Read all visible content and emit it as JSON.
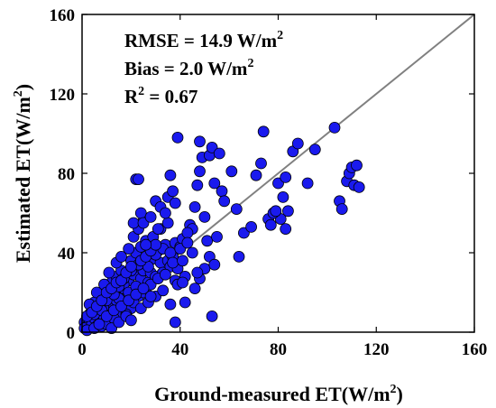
{
  "chart_data": {
    "type": "scatter",
    "xlabel": "Ground-measured ET(W/m",
    "xlabel_sup": "2",
    "xlabel_close": ")",
    "ylabel": "Estimated ET(W/m",
    "ylabel_sup": "2",
    "ylabel_close": ")",
    "xlim": [
      0,
      160
    ],
    "ylim": [
      0,
      160
    ],
    "xticks": [
      "0",
      "40",
      "80",
      "120",
      "160"
    ],
    "yticks": [
      "0",
      "40",
      "80",
      "120",
      "160"
    ],
    "annotations": {
      "rmse": "RMSE = 14.9 W/m",
      "rmse_sup": "2",
      "bias": "Bias = 2.0 W/m",
      "bias_sup": "2",
      "r2_prefix": "R",
      "r2_sup": "2",
      "r2_rest": " = 0.67"
    },
    "reference_line": {
      "from": [
        0,
        0
      ],
      "to": [
        160,
        160
      ],
      "color": "#808080"
    },
    "marker": {
      "fill": "#1a1aee",
      "stroke": "#000000"
    },
    "grid": false,
    "points": [
      [
        1,
        5
      ],
      [
        2,
        3
      ],
      [
        3,
        6
      ],
      [
        1,
        2
      ],
      [
        4,
        4
      ],
      [
        5,
        7
      ],
      [
        2,
        1
      ],
      [
        6,
        3
      ],
      [
        3,
        9
      ],
      [
        5,
        2
      ],
      [
        7,
        8
      ],
      [
        4,
        12
      ],
      [
        8,
        5
      ],
      [
        6,
        10
      ],
      [
        9,
        7
      ],
      [
        7,
        14
      ],
      [
        10,
        11
      ],
      [
        8,
        3
      ],
      [
        11,
        6
      ],
      [
        5,
        15
      ],
      [
        12,
        9
      ],
      [
        9,
        18
      ],
      [
        13,
        13
      ],
      [
        10,
        4
      ],
      [
        14,
        16
      ],
      [
        11,
        21
      ],
      [
        15,
        10
      ],
      [
        12,
        25
      ],
      [
        16,
        19
      ],
      [
        13,
        7
      ],
      [
        17,
        22
      ],
      [
        14,
        28
      ],
      [
        18,
        14
      ],
      [
        15,
        17
      ],
      [
        19,
        26
      ],
      [
        16,
        31
      ],
      [
        20,
        12
      ],
      [
        17,
        24
      ],
      [
        21,
        29
      ],
      [
        18,
        9
      ],
      [
        22,
        33
      ],
      [
        19,
        20
      ],
      [
        23,
        18
      ],
      [
        20,
        36
      ],
      [
        24,
        27
      ],
      [
        21,
        15
      ],
      [
        25,
        31
      ],
      [
        22,
        40
      ],
      [
        26,
        22
      ],
      [
        23,
        34
      ],
      [
        27,
        25
      ],
      [
        24,
        43
      ],
      [
        28,
        30
      ],
      [
        25,
        20
      ],
      [
        29,
        37
      ],
      [
        26,
        46
      ],
      [
        30,
        28
      ],
      [
        27,
        33
      ],
      [
        31,
        41
      ],
      [
        28,
        24
      ],
      [
        32,
        35
      ],
      [
        29,
        48
      ],
      [
        33,
        30
      ],
      [
        30,
        39
      ],
      [
        34,
        44
      ],
      [
        31,
        27
      ],
      [
        35,
        36
      ],
      [
        32,
        52
      ],
      [
        36,
        33
      ],
      [
        33,
        42
      ],
      [
        37,
        38
      ],
      [
        34,
        29
      ],
      [
        38,
        45
      ],
      [
        35,
        55
      ],
      [
        39,
        32
      ],
      [
        36,
        40
      ],
      [
        40,
        43
      ],
      [
        37,
        35
      ],
      [
        41,
        47
      ],
      [
        38,
        26
      ],
      [
        3,
        14
      ],
      [
        6,
        20
      ],
      [
        9,
        24
      ],
      [
        11,
        30
      ],
      [
        14,
        35
      ],
      [
        16,
        38
      ],
      [
        19,
        42
      ],
      [
        21,
        48
      ],
      [
        23,
        52
      ],
      [
        25,
        56
      ],
      [
        12,
        2
      ],
      [
        15,
        5
      ],
      [
        18,
        8
      ],
      [
        20,
        6
      ],
      [
        24,
        12
      ],
      [
        27,
        15
      ],
      [
        30,
        18
      ],
      [
        33,
        21
      ],
      [
        36,
        14
      ],
      [
        39,
        24
      ],
      [
        5,
        9
      ],
      [
        8,
        11
      ],
      [
        10,
        16
      ],
      [
        13,
        19
      ],
      [
        15,
        23
      ],
      [
        17,
        27
      ],
      [
        20,
        31
      ],
      [
        22,
        23
      ],
      [
        24,
        36
      ],
      [
        26,
        38
      ],
      [
        28,
        41
      ],
      [
        30,
        44
      ],
      [
        7,
        4
      ],
      [
        10,
        8
      ],
      [
        13,
        11
      ],
      [
        16,
        13
      ],
      [
        19,
        16
      ],
      [
        22,
        19
      ],
      [
        25,
        22
      ],
      [
        28,
        18
      ],
      [
        2,
        8
      ],
      [
        4,
        10
      ],
      [
        6,
        13
      ],
      [
        8,
        16
      ],
      [
        10,
        20
      ],
      [
        12,
        22
      ],
      [
        14,
        25
      ],
      [
        16,
        26
      ],
      [
        18,
        30
      ],
      [
        20,
        33
      ],
      [
        21,
        55
      ],
      [
        22,
        77
      ],
      [
        23,
        77
      ],
      [
        24,
        60
      ],
      [
        25,
        55
      ],
      [
        26,
        44
      ],
      [
        28,
        58
      ],
      [
        30,
        66
      ],
      [
        31,
        52
      ],
      [
        32,
        63
      ],
      [
        34,
        60
      ],
      [
        35,
        68
      ],
      [
        36,
        79
      ],
      [
        37,
        71
      ],
      [
        38,
        65
      ],
      [
        39,
        98
      ],
      [
        40,
        42
      ],
      [
        41,
        36
      ],
      [
        42,
        28
      ],
      [
        44,
        54
      ],
      [
        45,
        52
      ],
      [
        46,
        63
      ],
      [
        47,
        74
      ],
      [
        48,
        81
      ],
      [
        49,
        88
      ],
      [
        50,
        58
      ],
      [
        51,
        46
      ],
      [
        52,
        89
      ],
      [
        53,
        93
      ],
      [
        54,
        75
      ],
      [
        55,
        48
      ],
      [
        56,
        90
      ],
      [
        57,
        71
      ],
      [
        58,
        66
      ],
      [
        61,
        81
      ],
      [
        63,
        62
      ],
      [
        64,
        38
      ],
      [
        66,
        50
      ],
      [
        69,
        53
      ],
      [
        71,
        79
      ],
      [
        73,
        85
      ],
      [
        76,
        57
      ],
      [
        77,
        54
      ],
      [
        79,
        60
      ],
      [
        80,
        75
      ],
      [
        82,
        68
      ],
      [
        84,
        61
      ],
      [
        86,
        91
      ],
      [
        88,
        95
      ],
      [
        92,
        75
      ],
      [
        95,
        92
      ],
      [
        103,
        103
      ],
      [
        105,
        66
      ],
      [
        106,
        62
      ],
      [
        108,
        76
      ],
      [
        109,
        80
      ],
      [
        110,
        83
      ],
      [
        111,
        74
      ],
      [
        112,
        84
      ],
      [
        113,
        73
      ],
      [
        74,
        101
      ],
      [
        81,
        57
      ],
      [
        83,
        52
      ],
      [
        83,
        78
      ],
      [
        78,
        60
      ],
      [
        79,
        61
      ],
      [
        38,
        5
      ],
      [
        53,
        8
      ],
      [
        48,
        96
      ],
      [
        43,
        50
      ],
      [
        42,
        15
      ],
      [
        46,
        22
      ],
      [
        48,
        27
      ],
      [
        50,
        32
      ],
      [
        52,
        38
      ],
      [
        54,
        34
      ],
      [
        45,
        40
      ],
      [
        47,
        30
      ],
      [
        43,
        45
      ],
      [
        41,
        25
      ]
    ]
  }
}
